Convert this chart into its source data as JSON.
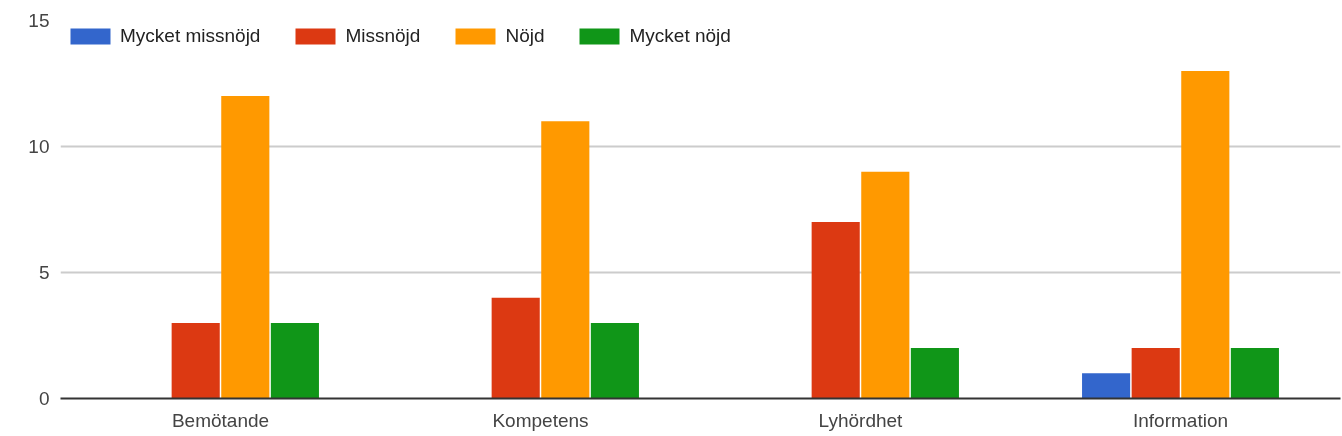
{
  "chart_data": {
    "type": "bar",
    "categories": [
      "Bemötande",
      "Kompetens",
      "Lyhördhet",
      "Information"
    ],
    "series": [
      {
        "name": "Mycket missnöjd",
        "color": "#3366cc",
        "values": [
          0,
          0,
          0,
          1
        ]
      },
      {
        "name": "Missnöjd",
        "color": "#dc3912",
        "values": [
          3,
          4,
          7,
          2
        ]
      },
      {
        "name": "Nöjd",
        "color": "#ff9900",
        "values": [
          12,
          11,
          9,
          13
        ]
      },
      {
        "name": "Mycket nöjd",
        "color": "#109618",
        "values": [
          3,
          3,
          2,
          2
        ]
      }
    ],
    "ylim": [
      0,
      15
    ],
    "yticks": [
      0,
      5,
      10,
      15
    ],
    "grid": "y",
    "legend": "top left"
  }
}
